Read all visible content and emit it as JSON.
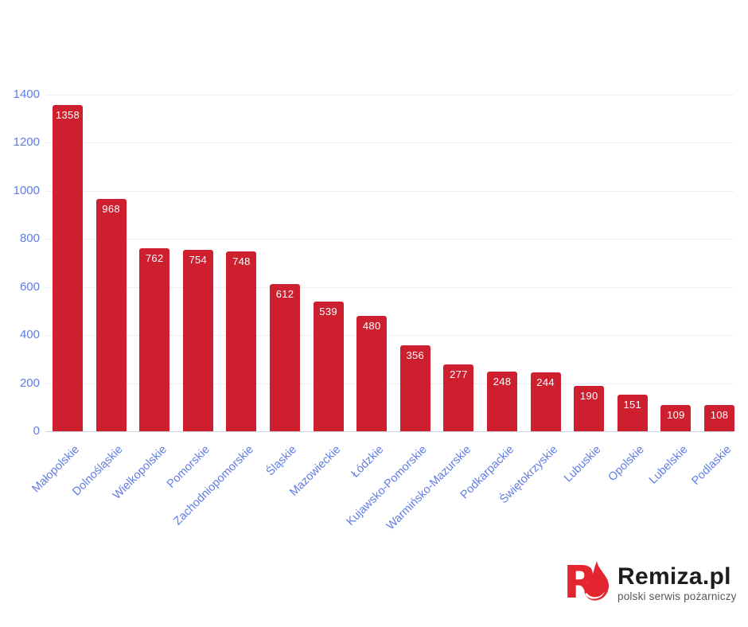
{
  "chart_data": {
    "type": "bar",
    "categories": [
      "Małopolskie",
      "Dolnośląskie",
      "Wielkopolskie",
      "Pomorskie",
      "Zachodniopomorskie",
      "Śląskie",
      "Mazowieckie",
      "Łódzkie",
      "Kujawsko-Pomorskie",
      "Warmińsko-Mazurskie",
      "Podkarpackie",
      "Świętokrzyskie",
      "Lubuskie",
      "Opolskie",
      "Lubelskie",
      "Podlaskie"
    ],
    "values": [
      1358,
      968,
      762,
      754,
      748,
      612,
      539,
      480,
      356,
      277,
      248,
      244,
      190,
      151,
      109,
      108
    ],
    "title": "",
    "xlabel": "",
    "ylabel": "",
    "ylim": [
      0,
      1400
    ],
    "yticks": [
      0,
      200,
      400,
      600,
      800,
      1000,
      1200,
      1400
    ],
    "grid": true,
    "legend": "none",
    "value_labels_position": "inside-top",
    "bar_color": "#ce1f2f",
    "value_label_color": "#ffffff",
    "axis_label_color": "#5f7ce4",
    "gridline_color": "#e9edf6",
    "x_label_rotation_deg": -45
  },
  "branding": {
    "name": "Remiza.pl",
    "tagline": "polski serwis pożarniczy",
    "logo_icon": "flame-r-icon",
    "logo_red": "#e32530",
    "name_color": "#1d1d1b",
    "tagline_color": "#575756"
  }
}
